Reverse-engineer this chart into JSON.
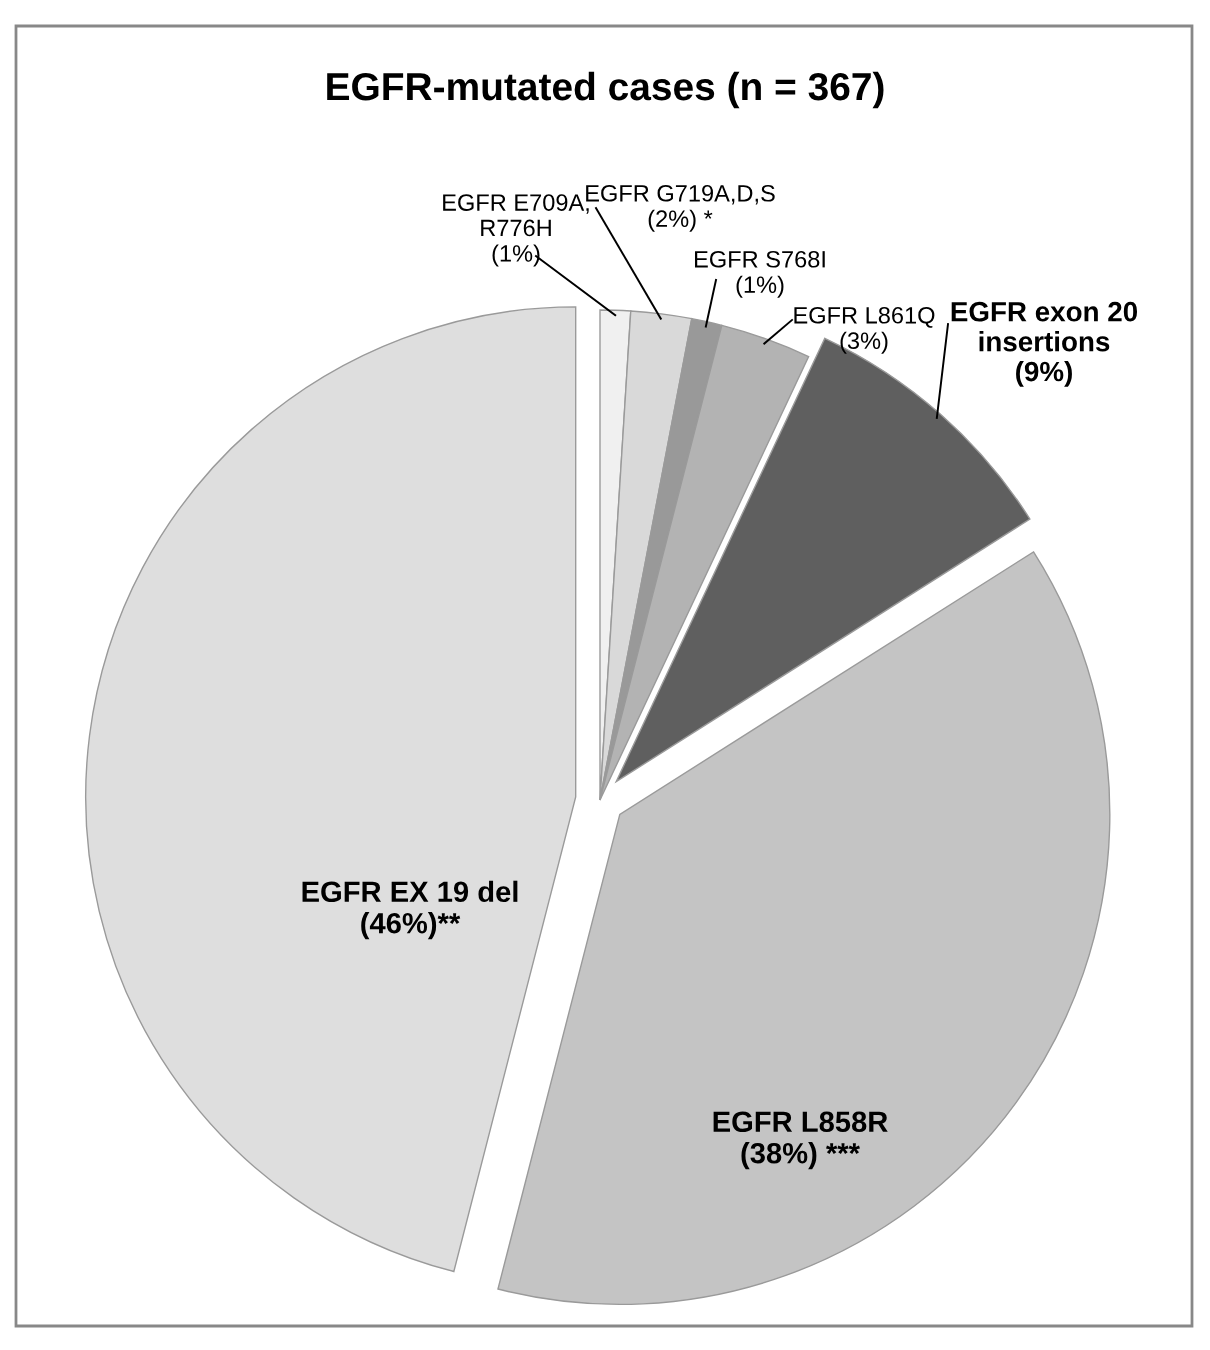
{
  "chart_data": {
    "type": "pie",
    "title": "EGFR-mutated cases (n = 367)",
    "categories": [
      "EGFR E709A,\nR776H\n(1%)",
      "EGFR G719A,D,S\n(2%) *",
      "EGFR S768I\n(1%)",
      "EGFR L861Q\n(3%)",
      "EGFR exon 20\ninsertions\n(9%)",
      "EGFR L858R\n(38%) ***",
      "EGFR EX 19 del\n(46%)**"
    ],
    "values": [
      1,
      2,
      1,
      3,
      9,
      38,
      46
    ],
    "colors": [
      "#f0f0f0",
      "#d9d9d9",
      "#999999",
      "#b3b3b3",
      "#5f5f5f",
      "#c4c4c4",
      "#dedede"
    ]
  }
}
